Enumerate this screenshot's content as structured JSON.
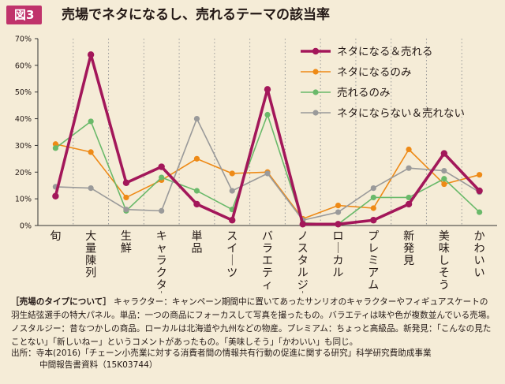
{
  "figure": {
    "badge": "図3",
    "title": "売場でネタになるし、売れるテーマの該当率"
  },
  "chart_data": {
    "type": "line",
    "ylim": [
      0,
      70
    ],
    "yticks": [
      "0%",
      "10%",
      "20%",
      "30%",
      "40%",
      "50%",
      "60%",
      "70%"
    ],
    "grid": "vertical dotted",
    "legend_position": "top-right",
    "categories": [
      "旬",
      "大量陳列",
      "生鮮",
      "キャラクター",
      "単品",
      "スイーツ",
      "バラエティ",
      "ノスタルジー",
      "ローカル",
      "プレミアム",
      "新発見",
      "美味しそう",
      "かわいい"
    ],
    "series": [
      {
        "name": "ネタになる＆売れる",
        "color": "#a3175a",
        "width": 3.6,
        "values": [
          11,
          64,
          16,
          22,
          8,
          2,
          51,
          0.5,
          0.5,
          2,
          8,
          27,
          13
        ]
      },
      {
        "name": "ネタになるのみ",
        "color": "#ee8a16",
        "width": 1.6,
        "values": [
          30.5,
          27.5,
          10.5,
          17,
          25,
          19.5,
          20,
          2.5,
          7.5,
          6.5,
          28.5,
          15.5,
          19
        ]
      },
      {
        "name": "売れるのみ",
        "color": "#6ab96a",
        "width": 1.6,
        "values": [
          29,
          39,
          5.5,
          18,
          13,
          6,
          41.5,
          1,
          0.5,
          10.5,
          10.5,
          17.5,
          5
        ]
      },
      {
        "name": "ネタにならない＆売れない",
        "color": "#9a9a9a",
        "width": 1.6,
        "values": [
          14.5,
          14,
          6,
          5.5,
          40,
          13,
          19.5,
          2,
          5,
          14,
          21.5,
          20.5,
          12.5
        ]
      }
    ]
  },
  "notes": {
    "heading": "［売場のタイプについて］",
    "text": " キャラクター：キャンペーン期間中に置いてあったサンリオのキャラクターやフィギュアスケートの羽生結弦選手の特大パネル。単品：一つの商品にフォーカスして写真を撮ったもの。バラエティは味や色が複数並んでいる売場。ノスタルジー：昔なつかしの商品。ローカルは北海道や九州などの物産。プレミアム：ちょっと高級品。新発見：「こんなの見たことない」「新しいねー」というコメントがあったもの。「美味しそう」「かわいい」も同じ。"
  },
  "source": {
    "line1": "出所：寺本(2016)「チェーン小売業に対する消費者間の情報共有行動の促進に関する研究」科学研究費助成事業",
    "line2": "中間報告書資料（15K03744）"
  }
}
